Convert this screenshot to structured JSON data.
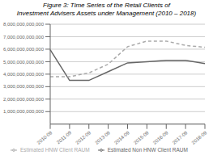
{
  "chart_data": {
    "type": "line",
    "title": "Figure 3: Time Series of the Retail Clients of",
    "subtitle": "Investment Advisers Assets under Management (2010 – 2018)",
    "categories": [
      "2010-09",
      "2011-09",
      "2012-09",
      "2013-09",
      "2014-09",
      "2015-09",
      "2016-09",
      "2017-09",
      "2018-09"
    ],
    "series": [
      {
        "name": "Estimated Non HNW Client RAUM",
        "color": "#666666",
        "line_style": "solid",
        "values": [
          5950000000000,
          3500000000000,
          3500000000000,
          4200000000000,
          4900000000000,
          5000000000000,
          5100000000000,
          5100000000000,
          4850000000000
        ]
      },
      {
        "name": "Estimated HNW Client RAUM",
        "color": "#aaaaaa",
        "line_style": "dashed",
        "values": [
          3800000000000,
          3800000000000,
          4100000000000,
          4800000000000,
          6200000000000,
          6650000000000,
          6650000000000,
          6300000000000,
          6150000000000
        ]
      }
    ],
    "ylim": [
      0,
      8000000000000
    ],
    "yticks": [
      {
        "value": 1000000000000,
        "label": "1,000,000,000,000"
      },
      {
        "value": 2000000000000,
        "label": "2,000,000,000,000"
      },
      {
        "value": 3000000000000,
        "label": "3,000,000,000,000"
      },
      {
        "value": 4000000000000,
        "label": "4,000,000,000,000"
      },
      {
        "value": 5000000000000,
        "label": "5,000,000,000,000"
      },
      {
        "value": 6000000000000,
        "label": "6,000,000,000,000"
      },
      {
        "value": 7000000000000,
        "label": "7,000,000,000,000"
      },
      {
        "value": 8000000000000,
        "label": "8,000,000,000,000"
      }
    ],
    "grid": true,
    "legend": "bottom"
  }
}
